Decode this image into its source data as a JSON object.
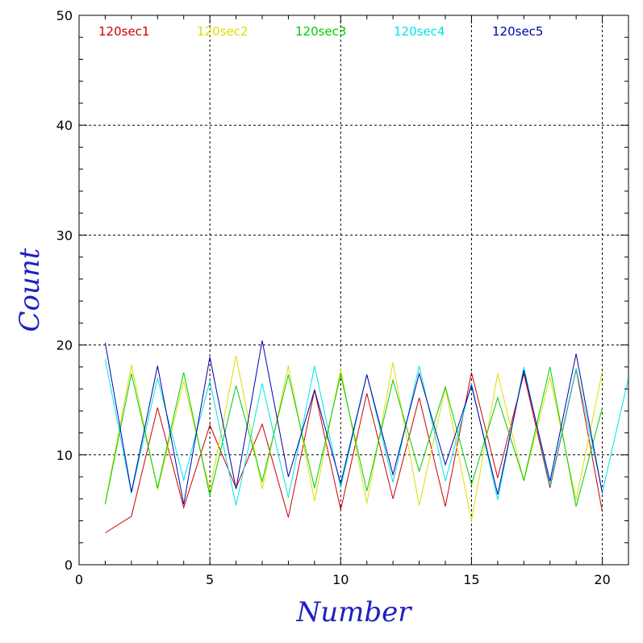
{
  "chart_data": {
    "type": "line",
    "xlabel": "Number",
    "ylabel": "Count",
    "xlim": [
      0,
      21
    ],
    "ylim": [
      0,
      50
    ],
    "x_ticks": [
      0,
      5,
      10,
      15,
      20
    ],
    "y_ticks": [
      0,
      10,
      20,
      30,
      40,
      50
    ],
    "grid": true,
    "legend_position": "top",
    "x": [
      1,
      2,
      3,
      4,
      5,
      6,
      7,
      8,
      9,
      10,
      11,
      12,
      13,
      14,
      15,
      16,
      17,
      18,
      19,
      20,
      21
    ],
    "series": [
      {
        "name": "120sec1",
        "color": "#cc0000",
        "values": [
          2.9,
          4.4,
          14.3,
          5.2,
          12.7,
          7.0,
          12.8,
          4.3,
          15.9,
          5.0,
          15.6,
          6.0,
          15.2,
          5.3,
          17.5,
          7.9,
          17.4,
          7.0,
          17.8,
          4.8,
          null
        ]
      },
      {
        "name": "120sec2",
        "color": "#dddd00",
        "values": [
          5.6,
          18.2,
          6.8,
          16.7,
          6.8,
          19.0,
          6.9,
          18.1,
          5.8,
          17.8,
          5.6,
          18.4,
          5.4,
          16.1,
          4.0,
          17.4,
          7.6,
          17.1,
          5.9,
          17.6,
          null
        ]
      },
      {
        "name": "120sec3",
        "color": "#00cc00",
        "values": [
          5.5,
          17.4,
          7.0,
          17.5,
          6.3,
          16.3,
          7.6,
          17.3,
          7.0,
          17.3,
          6.7,
          16.8,
          8.5,
          16.2,
          7.3,
          15.2,
          7.7,
          18.0,
          5.3,
          14.3,
          null
        ]
      },
      {
        "name": "120sec4",
        "color": "#00e5e5",
        "values": [
          18.7,
          6.5,
          17.0,
          7.7,
          16.7,
          5.4,
          16.5,
          6.1,
          18.1,
          7.0,
          17.3,
          7.5,
          18.1,
          7.6,
          16.5,
          5.9,
          18.0,
          7.2,
          17.9,
          6.6,
          17.0
        ]
      },
      {
        "name": "120sec5",
        "color": "#0000aa",
        "values": [
          20.2,
          6.6,
          18.1,
          5.5,
          18.9,
          6.9,
          20.4,
          8.0,
          15.9,
          7.4,
          17.3,
          8.2,
          17.4,
          9.1,
          16.3,
          6.4,
          17.7,
          7.6,
          19.2,
          6.5,
          null
        ]
      }
    ]
  }
}
